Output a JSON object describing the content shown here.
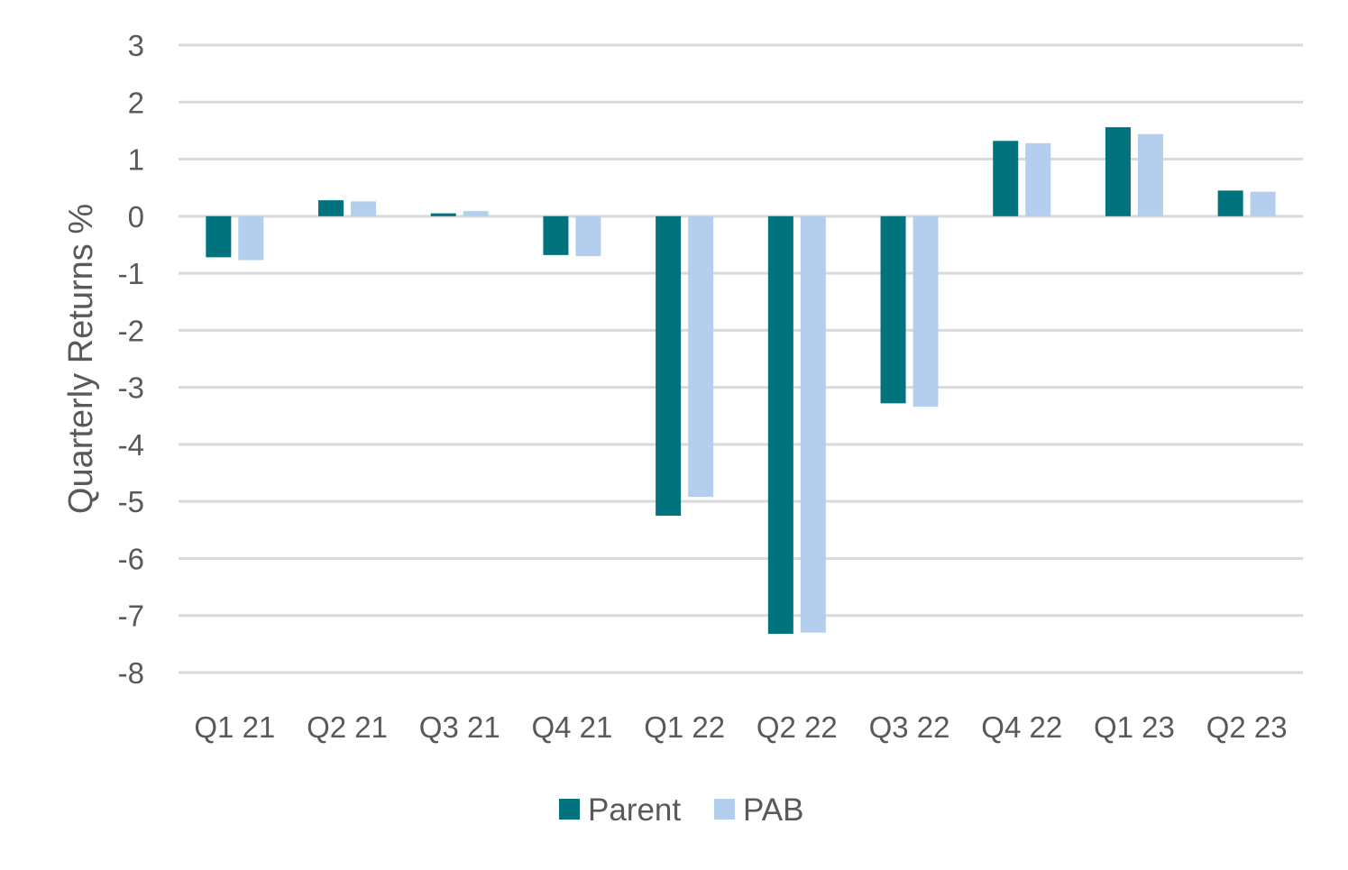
{
  "chart_data": {
    "type": "bar",
    "title": "",
    "xlabel": "",
    "ylabel": "Quarterly Returns %",
    "ylim": [
      -8,
      3
    ],
    "yticks": [
      3,
      2,
      1,
      0,
      -1,
      -2,
      -3,
      -4,
      -5,
      -6,
      -7,
      -8
    ],
    "grid": true,
    "legend_position": "bottom",
    "categories": [
      "Q1 21",
      "Q2 21",
      "Q3 21",
      "Q4 21",
      "Q1 22",
      "Q2 22",
      "Q3 22",
      "Q4 22",
      "Q1 23",
      "Q2 23"
    ],
    "series": [
      {
        "name": "Parent",
        "color": "#00737d",
        "values": [
          -0.72,
          0.28,
          0.05,
          -0.68,
          -5.25,
          -7.32,
          -3.28,
          1.32,
          1.56,
          0.45
        ]
      },
      {
        "name": "PAB",
        "color": "#b4cfee",
        "values": [
          -0.77,
          0.26,
          0.09,
          -0.7,
          -4.92,
          -7.3,
          -3.34,
          1.28,
          1.44,
          0.43
        ]
      }
    ]
  }
}
